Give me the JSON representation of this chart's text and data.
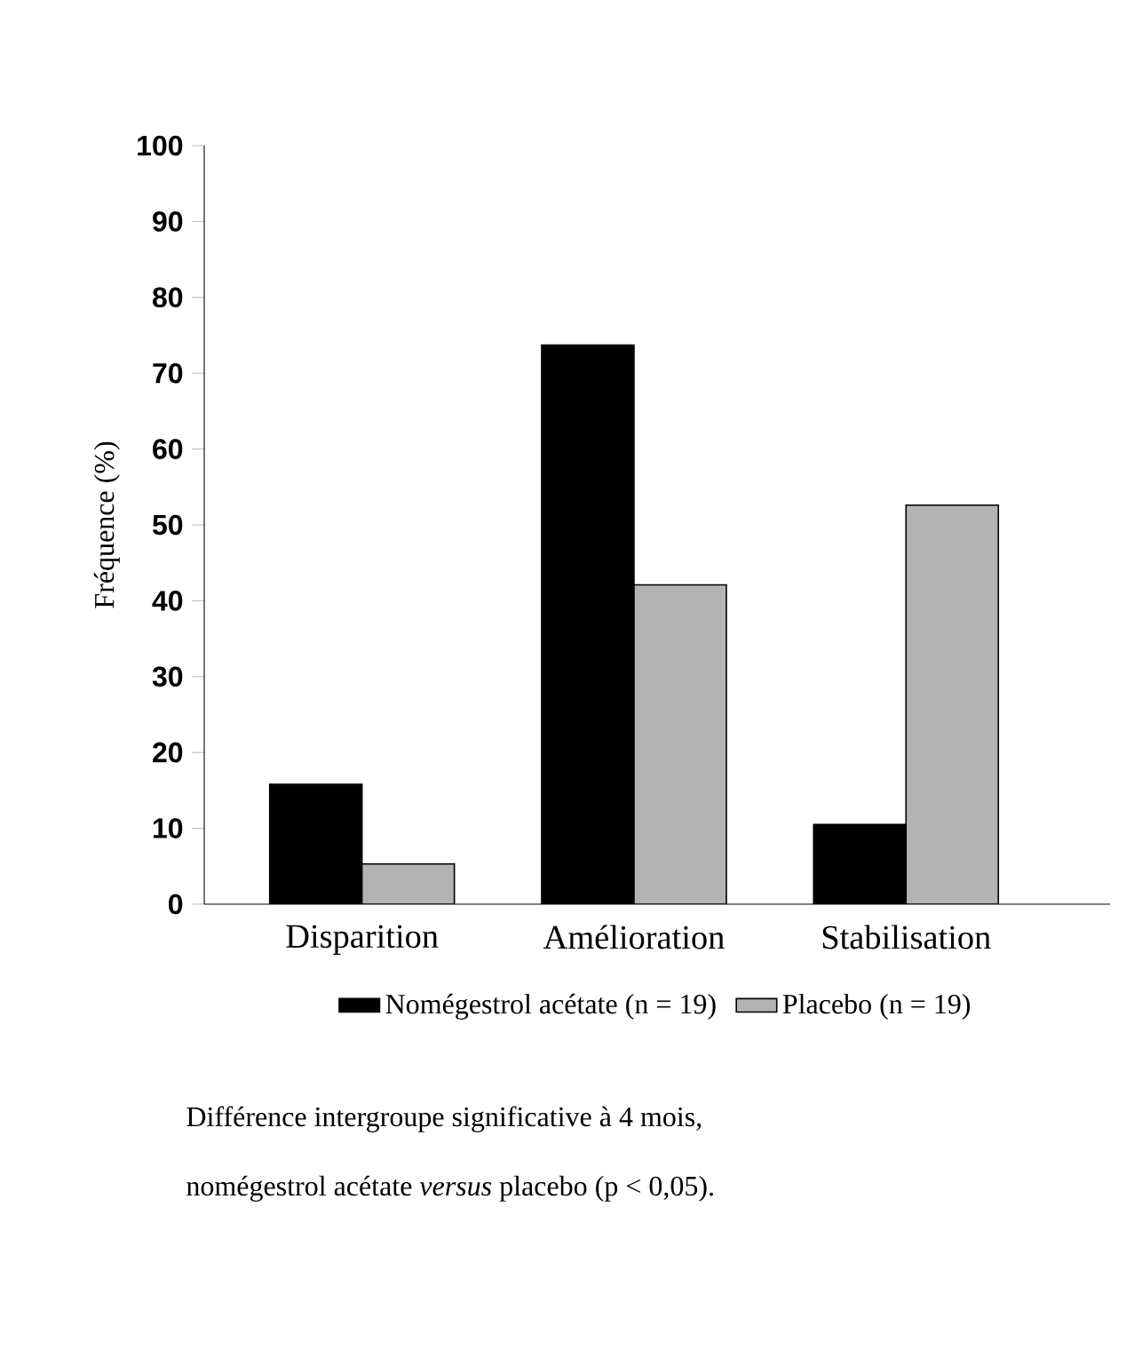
{
  "chart_data": {
    "type": "bar",
    "ylabel": "Fréquence (%)",
    "categories": [
      "Disparition",
      "Amélioration",
      "Stabilisation"
    ],
    "series": [
      {
        "name": "Nomégestrol acétate (n = 19)",
        "color": "#000000",
        "values": [
          15.8,
          73.7,
          10.5
        ]
      },
      {
        "name": "Placebo (n = 19)",
        "color": "#b3b3b3",
        "values": [
          5.3,
          42.1,
          52.6
        ]
      }
    ],
    "ylim": [
      0,
      100
    ],
    "yticks": [
      0,
      10,
      20,
      30,
      40,
      50,
      60,
      70,
      80,
      90,
      100
    ],
    "legend": "bottom",
    "annotations": [
      "Différence intergroupe significative à 4 mois,",
      "nomégestrol acétate *versus* placebo (p < 0,05)."
    ]
  }
}
